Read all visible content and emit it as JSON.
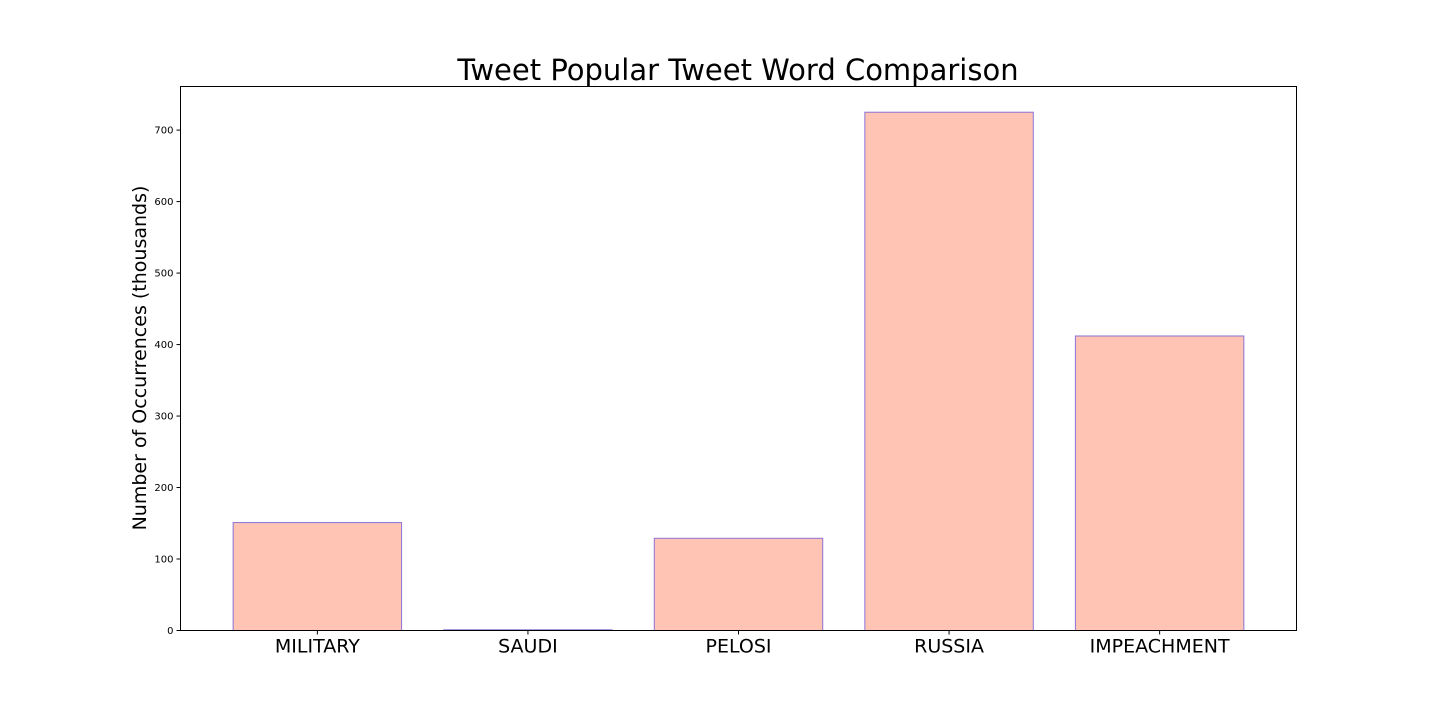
{
  "chart_data": {
    "type": "bar",
    "title": "Tweet Popular Tweet Word Comparison",
    "xlabel": "",
    "ylabel": "Number of Occurrences (thousands)",
    "categories": [
      "MILITARY",
      "SAUDI",
      "PELOSI",
      "RUSSIA",
      "IMPEACHMENT"
    ],
    "values": [
      151,
      1,
      129,
      725,
      412
    ],
    "ylim": [
      0,
      761
    ],
    "yticks": [
      0,
      100,
      200,
      300,
      400,
      500,
      600,
      700
    ],
    "grid": false,
    "legend": "none",
    "colors": {
      "bar_fill": "#ffc4b4",
      "bar_edge": "#8a72d8",
      "axis": "#000000"
    }
  }
}
